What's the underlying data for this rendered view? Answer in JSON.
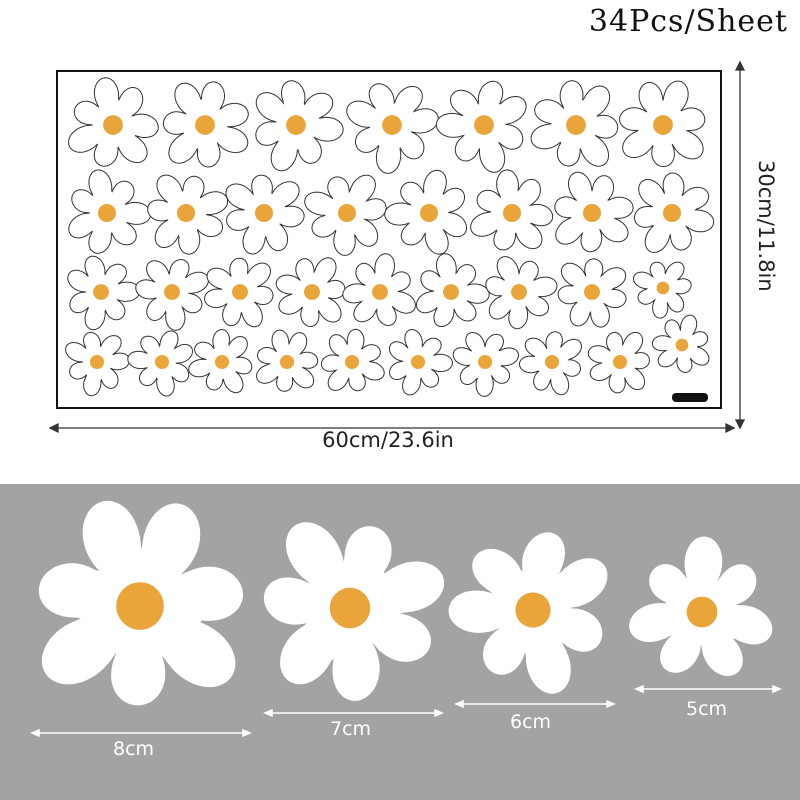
{
  "title": "34Pcs/Sheet",
  "sheet": {
    "width_label": "60cm/23.6in",
    "height_label": "30cm/11.8in",
    "count": 34,
    "rows": [
      7,
      8,
      9,
      10
    ]
  },
  "sizes": [
    {
      "label": "8cm"
    },
    {
      "label": "7cm"
    },
    {
      "label": "6cm"
    },
    {
      "label": "5cm"
    }
  ],
  "colors": {
    "petal_outline": "#333333",
    "center": "#eaa53a",
    "band": "#a3a3a3",
    "petal_fill": "#ffffff"
  }
}
